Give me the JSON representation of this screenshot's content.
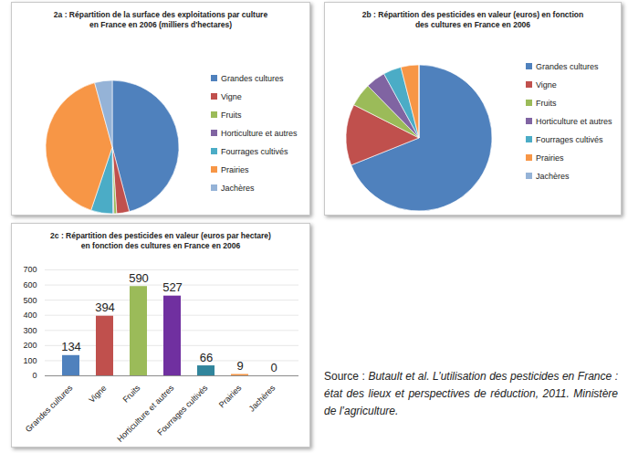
{
  "chart_data": [
    {
      "type": "pie",
      "title": "2a : Répartition de la surface des exploitations par culture en France en 2006 (milliers d'hectares)",
      "categories": [
        "Grandes cultures",
        "Vigne",
        "Fruits",
        "Horticulture et autres",
        "Fourrages cultivés",
        "Prairies",
        "Jachères"
      ],
      "values": [
        12900,
        860,
        190,
        60,
        1500,
        11400,
        1200
      ],
      "colors": [
        "#4F81BD",
        "#C0504D",
        "#9BBB59",
        "#8064A2",
        "#4BACC6",
        "#F79646",
        "#95B3D7"
      ],
      "legend": "right"
    },
    {
      "type": "pie",
      "title": "2b : Répartition des pesticides en valeur (euros) en fonction des cultures en France en 2006",
      "categories": [
        "Grandes cultures",
        "Vigne",
        "Fruits",
        "Horticulture et autres",
        "Fourrages cultivés",
        "Prairies",
        "Jachères"
      ],
      "values": [
        1730000000,
        340000000,
        130000000,
        110000000,
        100000000,
        100000000,
        0
      ],
      "colors": [
        "#4F81BD",
        "#C0504D",
        "#9BBB59",
        "#8064A2",
        "#4BACC6",
        "#F79646",
        "#95B3D7"
      ],
      "legend": "right"
    },
    {
      "type": "bar",
      "title": "2c : Répartition des pesticides en valeur (euros par hectare) en fonction des cultures en France en 2006",
      "categories": [
        "Grandes cultures",
        "Vigne",
        "Fruits",
        "Horticulture et autres",
        "Fourrages cultivés",
        "Prairies",
        "Jachères"
      ],
      "values": [
        134,
        394,
        590,
        527,
        66,
        9,
        0
      ],
      "colors": [
        "#4F81BD",
        "#C0504D",
        "#9BBB59",
        "#7030A0",
        "#31859C",
        "#F79646",
        "#95B3D7"
      ],
      "ylim": [
        0,
        700
      ],
      "yticks": [
        0,
        100,
        200,
        300,
        400,
        500,
        600,
        700
      ],
      "grid": true,
      "data_labels": true
    }
  ],
  "source": {
    "label": "Source :",
    "text": "Butault et al. L’utilisation des pesticides en France : état des lieux et perspectives de réduction, 2011. Ministère de l’agriculture."
  }
}
